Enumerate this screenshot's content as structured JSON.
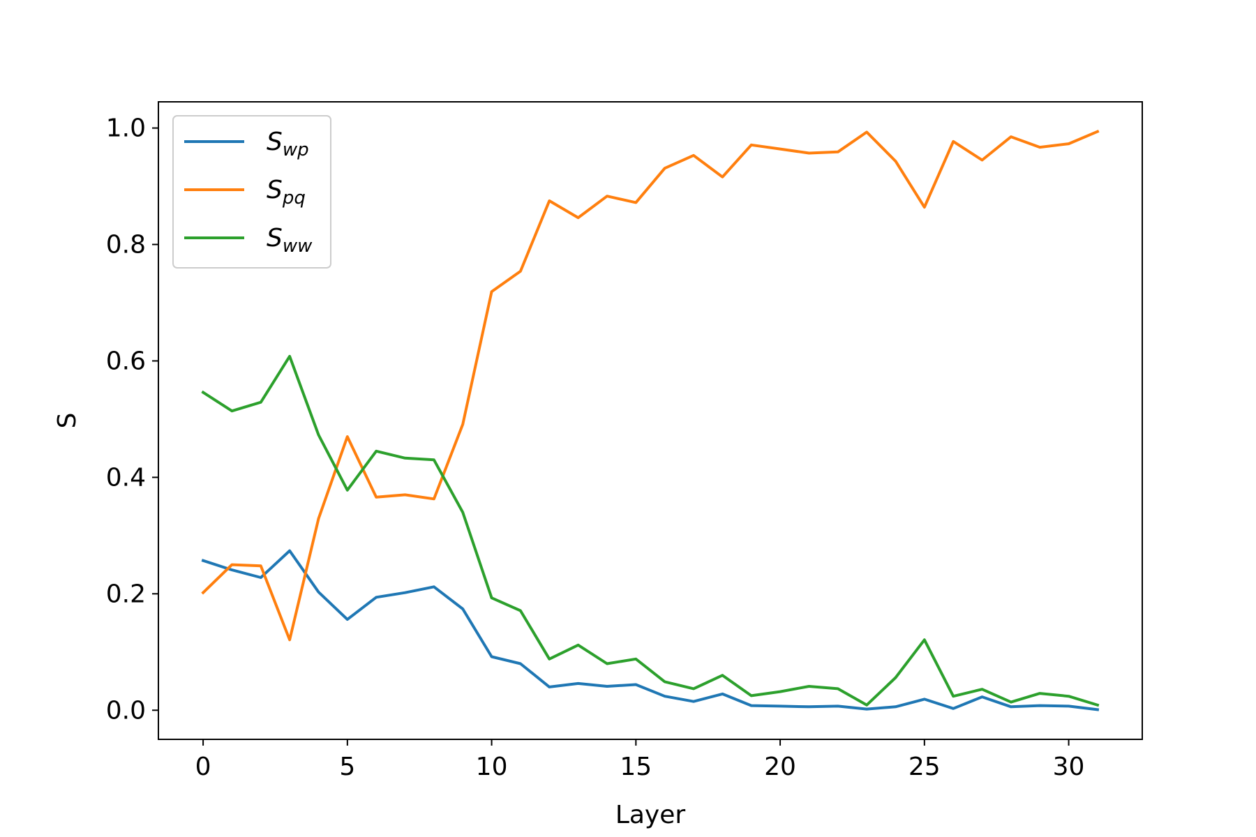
{
  "chart_data": {
    "type": "line",
    "title": "",
    "xlabel": "Layer",
    "ylabel": "S",
    "xlim": [
      -1.55,
      32.55
    ],
    "ylim": [
      -0.05,
      1.045
    ],
    "xticks": [
      0,
      5,
      10,
      15,
      20,
      25,
      30
    ],
    "xtick_labels": [
      "0",
      "5",
      "10",
      "15",
      "20",
      "25",
      "30"
    ],
    "yticks": [
      0.0,
      0.2,
      0.4,
      0.6,
      0.8,
      1.0
    ],
    "ytick_labels": [
      "0.0",
      "0.2",
      "0.4",
      "0.6",
      "0.8",
      "1.0"
    ],
    "grid": false,
    "legend_position": "upper-left",
    "x": [
      0,
      1,
      2,
      3,
      4,
      5,
      6,
      7,
      8,
      9,
      10,
      11,
      12,
      13,
      14,
      15,
      16,
      17,
      18,
      19,
      20,
      21,
      22,
      23,
      24,
      25,
      26,
      27,
      28,
      29,
      30,
      31
    ],
    "series": [
      {
        "name": "S_wp",
        "legend_main": "S",
        "legend_sub": "wp",
        "color": "#1f77b4",
        "values": [
          0.257,
          0.241,
          0.228,
          0.274,
          0.203,
          0.156,
          0.194,
          0.202,
          0.212,
          0.174,
          0.092,
          0.08,
          0.04,
          0.046,
          0.041,
          0.044,
          0.024,
          0.015,
          0.028,
          0.008,
          0.007,
          0.006,
          0.007,
          0.002,
          0.006,
          0.019,
          0.003,
          0.023,
          0.006,
          0.008,
          0.007,
          0.001
        ]
      },
      {
        "name": "S_pq",
        "legend_main": "S",
        "legend_sub": "pq",
        "color": "#ff7f0e",
        "values": [
          0.202,
          0.25,
          0.248,
          0.121,
          0.329,
          0.47,
          0.366,
          0.37,
          0.363,
          0.491,
          0.719,
          0.754,
          0.875,
          0.846,
          0.883,
          0.872,
          0.931,
          0.953,
          0.916,
          0.971,
          0.964,
          0.957,
          0.959,
          0.993,
          0.943,
          0.864,
          0.977,
          0.945,
          0.985,
          0.967,
          0.973,
          0.994
        ]
      },
      {
        "name": "S_ww",
        "legend_main": "S",
        "legend_sub": "ww",
        "color": "#2ca02c",
        "values": [
          0.546,
          0.514,
          0.529,
          0.608,
          0.473,
          0.378,
          0.445,
          0.433,
          0.43,
          0.34,
          0.193,
          0.171,
          0.088,
          0.112,
          0.08,
          0.088,
          0.049,
          0.037,
          0.06,
          0.025,
          0.032,
          0.041,
          0.037,
          0.009,
          0.056,
          0.121,
          0.024,
          0.036,
          0.014,
          0.029,
          0.024,
          0.009
        ]
      }
    ]
  }
}
